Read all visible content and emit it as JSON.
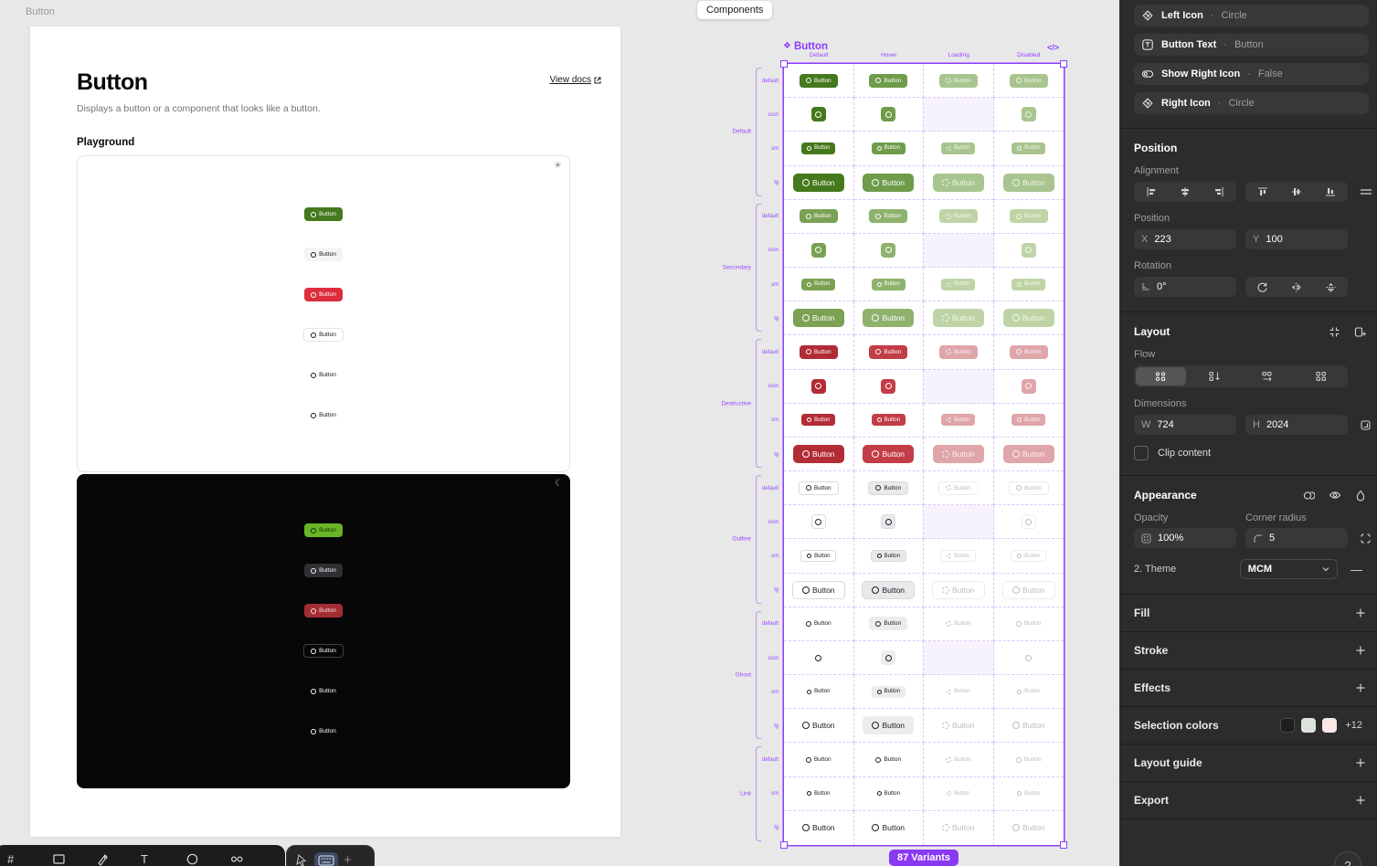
{
  "colors": {
    "accent_purple": "#8b3dff",
    "green_primary": "#45791d",
    "red_destructive": "#b22c35",
    "panel_bg": "#2c2c2c",
    "canvas_bg": "#e8e8e8"
  },
  "canvas": {
    "page_frame_label": "Button",
    "components_tab": "Components",
    "doc": {
      "title": "Button",
      "view_docs": "View docs",
      "subtitle": "Displays a button or a component that looks like a button.",
      "playground_label": "Playground",
      "button_label": "Button",
      "playground_variants": [
        "primary",
        "secondary",
        "destructive",
        "outline",
        "ghost",
        "link"
      ]
    },
    "components_frame": {
      "title": "Button",
      "code_icon": "</>",
      "state_headers": [
        "Default",
        "Hover",
        "Loading",
        "Disabled"
      ],
      "button_label": "Button",
      "groups": [
        {
          "name": "Default",
          "variant": "primary",
          "rows": [
            "default",
            "icon",
            "sm",
            "lg"
          ]
        },
        {
          "name": "Secondary",
          "variant": "secondary",
          "rows": [
            "default",
            "icon",
            "sm",
            "lg"
          ]
        },
        {
          "name": "Destructive",
          "variant": "destructive",
          "rows": [
            "default",
            "icon",
            "sm",
            "lg"
          ]
        },
        {
          "name": "Outline",
          "variant": "outline",
          "rows": [
            "default",
            "icon",
            "sm",
            "lg"
          ]
        },
        {
          "name": "Ghost",
          "variant": "ghost",
          "rows": [
            "default",
            "icon",
            "sm",
            "lg"
          ]
        },
        {
          "name": "Link",
          "variant": "link",
          "rows": [
            "default",
            "sm",
            "lg"
          ]
        }
      ],
      "variants_badge": "87 Variants"
    }
  },
  "panel": {
    "properties": [
      {
        "icon": "instance-swap-icon",
        "label": "Left Icon",
        "value": "Circle"
      },
      {
        "icon": "text-property-icon",
        "label": "Button Text",
        "value": "Button"
      },
      {
        "icon": "boolean-toggle-icon",
        "label": "Show Right Icon",
        "value": "False"
      },
      {
        "icon": "instance-swap-icon",
        "label": "Right Icon",
        "value": "Circle"
      }
    ],
    "position": {
      "title": "Position",
      "alignment_label": "Alignment",
      "position_label": "Position",
      "x_label": "X",
      "x_value": "223",
      "y_label": "Y",
      "y_value": "100",
      "rotation_label": "Rotation",
      "rotation_value": "0°"
    },
    "layout": {
      "title": "Layout",
      "flow_label": "Flow",
      "dimensions_label": "Dimensions",
      "w_label": "W",
      "w_value": "724",
      "h_label": "H",
      "h_value": "2024",
      "clip_label": "Clip content"
    },
    "appearance": {
      "title": "Appearance",
      "opacity_label": "Opacity",
      "opacity_value": "100%",
      "corner_label": "Corner radius",
      "corner_value": "5",
      "theme_label": "2. Theme",
      "theme_value": "MCM"
    },
    "sections": [
      {
        "label": "Fill",
        "plus": true
      },
      {
        "label": "Stroke",
        "plus": true
      },
      {
        "label": "Effects",
        "plus": true
      },
      {
        "label": "Selection colors",
        "plus": false,
        "swatches": [
          "#1e1e1e",
          "#dce3dd",
          "#f8e7e4"
        ],
        "extra": "+12"
      },
      {
        "label": "Layout guide",
        "plus": true
      },
      {
        "label": "Export",
        "plus": true
      }
    ],
    "help_label": "?"
  }
}
